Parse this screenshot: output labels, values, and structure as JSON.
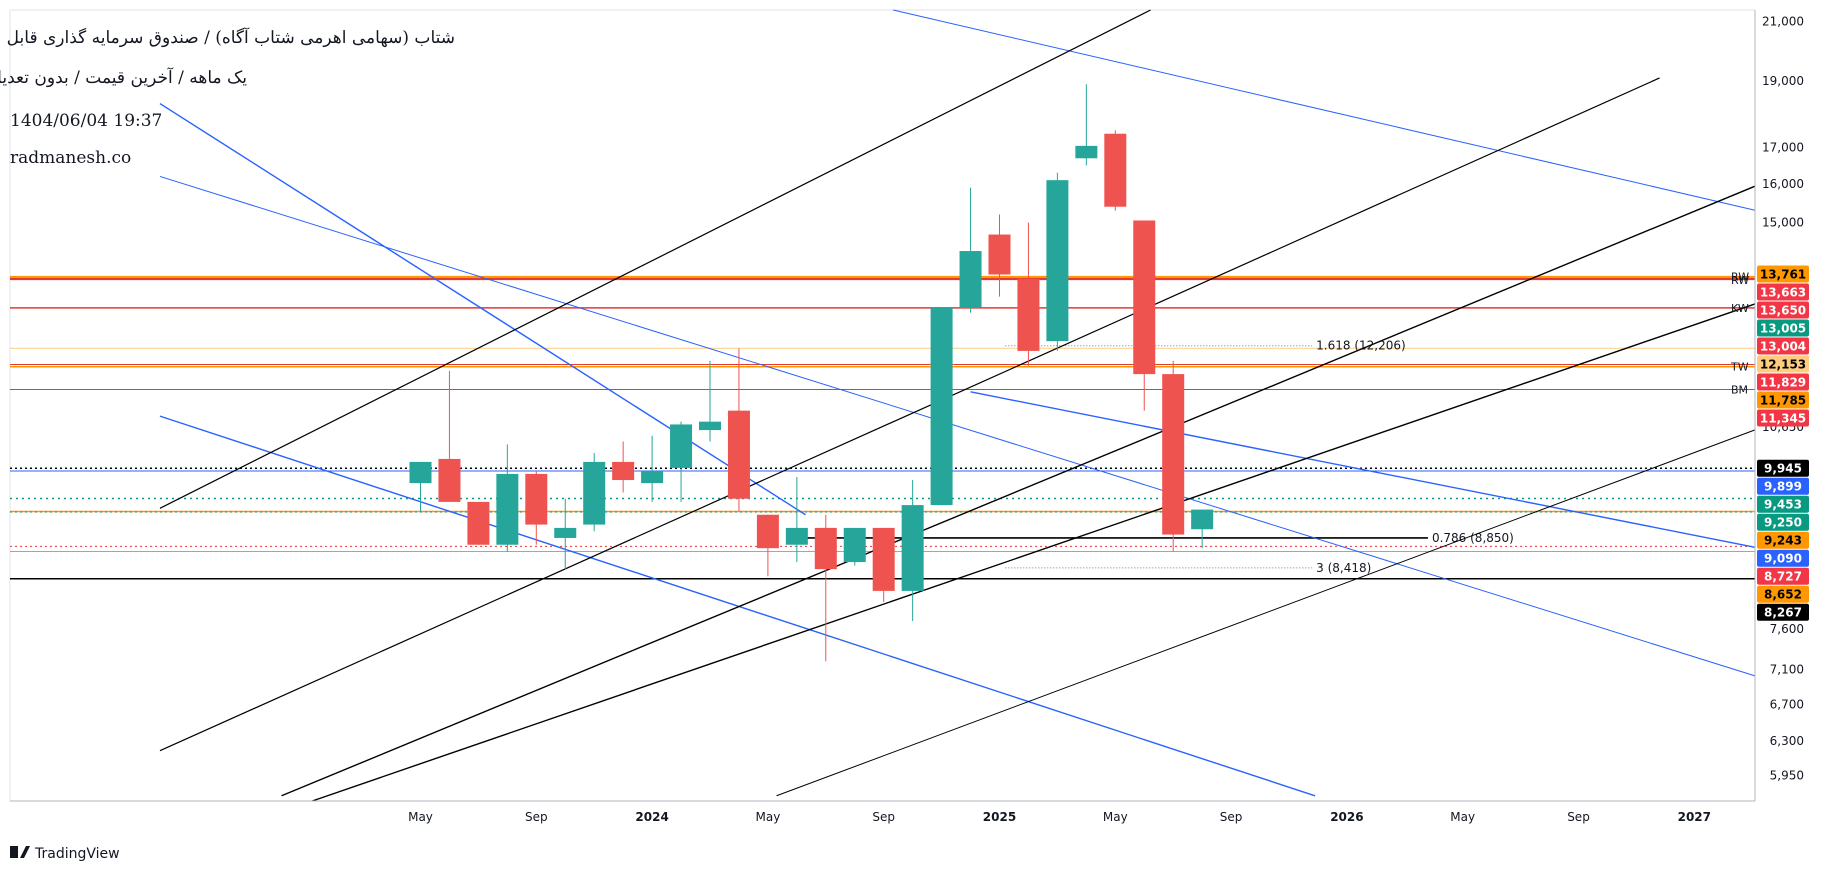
{
  "header": {
    "title_line1": "شتاب (سهامی اهرمی شتاب آگاه) / صندوق سرمایه گذاری قابل معامله",
    "title_line2": "یک ماهه / آخرین قیمت / بدون تعدیل",
    "timestamp": "1404/06/04 19:37",
    "site": "radmanesh.co"
  },
  "watermark": "TradingView",
  "colors": {
    "up": "#26a69a",
    "down": "#ef5350",
    "blue": "#2962ff",
    "black": "#000000",
    "orange": "#ff9800",
    "red": "#e53935"
  },
  "chart_data": {
    "type": "candlestick",
    "timeframe": "1M",
    "y_scale": "log",
    "ylim": [
      5700,
      21400
    ],
    "y_ticks": [
      {
        "v": 21000,
        "t": "21,000"
      },
      {
        "v": 19000,
        "t": "19,000"
      },
      {
        "v": 17000,
        "t": "17,000"
      },
      {
        "v": 16000,
        "t": "16,000"
      },
      {
        "v": 15000,
        "t": "15,000"
      },
      {
        "v": 10650,
        "t": "10,650"
      },
      {
        "v": 7600,
        "t": "7,600"
      },
      {
        "v": 7100,
        "t": "7,100"
      },
      {
        "v": 6700,
        "t": "6,700"
      },
      {
        "v": 6300,
        "t": "6,300"
      },
      {
        "v": 5950,
        "t": "5,950"
      }
    ],
    "x_ticks": [
      {
        "i": 0,
        "t": "May",
        "bold": false
      },
      {
        "i": 4,
        "t": "Sep",
        "bold": false
      },
      {
        "i": 8,
        "t": "2024",
        "bold": true
      },
      {
        "i": 12,
        "t": "May",
        "bold": false
      },
      {
        "i": 16,
        "t": "Sep",
        "bold": false
      },
      {
        "i": 20,
        "t": "2025",
        "bold": true
      },
      {
        "i": 24,
        "t": "May",
        "bold": false
      },
      {
        "i": 28,
        "t": "Sep",
        "bold": false
      },
      {
        "i": 32,
        "t": "2026",
        "bold": true
      },
      {
        "i": 36,
        "t": "May",
        "bold": false
      },
      {
        "i": 40,
        "t": "Sep",
        "bold": false
      },
      {
        "i": 44,
        "t": "2027",
        "bold": true
      }
    ],
    "candles": [
      {
        "i": 0,
        "o": 9700,
        "h": 10000,
        "l": 9250,
        "c": 10050
      },
      {
        "i": 1,
        "o": 10100,
        "h": 11700,
        "l": 9500,
        "c": 9400
      },
      {
        "i": 2,
        "o": 9400,
        "h": 9400,
        "l": 8750,
        "c": 8750
      },
      {
        "i": 3,
        "o": 8750,
        "h": 10350,
        "l": 8650,
        "c": 9850
      },
      {
        "i": 4,
        "o": 9850,
        "h": 9900,
        "l": 8750,
        "c": 9050
      },
      {
        "i": 5,
        "o": 8850,
        "h": 9450,
        "l": 8400,
        "c": 9000
      },
      {
        "i": 6,
        "o": 9050,
        "h": 10200,
        "l": 8950,
        "c": 10050
      },
      {
        "i": 7,
        "o": 10050,
        "h": 10400,
        "l": 9550,
        "c": 9750
      },
      {
        "i": 8,
        "o": 9700,
        "h": 10500,
        "l": 9400,
        "c": 9900
      },
      {
        "i": 9,
        "o": 9950,
        "h": 10750,
        "l": 9400,
        "c": 10700
      },
      {
        "i": 10,
        "o": 10600,
        "h": 11900,
        "l": 10400,
        "c": 10750
      },
      {
        "i": 11,
        "o": 10950,
        "h": 12150,
        "l": 9250,
        "c": 9450
      },
      {
        "i": 12,
        "o": 9200,
        "h": 9200,
        "l": 8300,
        "c": 8700
      },
      {
        "i": 13,
        "o": 8750,
        "h": 9800,
        "l": 8500,
        "c": 9000
      },
      {
        "i": 14,
        "o": 9000,
        "h": 9200,
        "l": 7200,
        "c": 8400
      },
      {
        "i": 15,
        "o": 8500,
        "h": 9000,
        "l": 8450,
        "c": 9000
      },
      {
        "i": 16,
        "o": 9000,
        "h": 9000,
        "l": 7950,
        "c": 8100
      },
      {
        "i": 17,
        "o": 8100,
        "h": 9750,
        "l": 7700,
        "c": 9350
      },
      {
        "i": 18,
        "o": 9350,
        "h": 13020,
        "l": 9350,
        "c": 13020
      },
      {
        "i": 19,
        "o": 13020,
        "h": 15900,
        "l": 12900,
        "c": 14300
      },
      {
        "i": 20,
        "o": 14700,
        "h": 15200,
        "l": 13250,
        "c": 13750
      },
      {
        "i": 21,
        "o": 13650,
        "h": 15000,
        "l": 11800,
        "c": 12100
      },
      {
        "i": 22,
        "o": 12300,
        "h": 16300,
        "l": 12100,
        "c": 16100
      },
      {
        "i": 23,
        "o": 16700,
        "h": 18900,
        "l": 16500,
        "c": 17050
      },
      {
        "i": 24,
        "o": 17400,
        "h": 17500,
        "l": 15300,
        "c": 15400
      },
      {
        "i": 25,
        "o": 15050,
        "h": 15050,
        "l": 10950,
        "c": 11640
      },
      {
        "i": 26,
        "o": 11640,
        "h": 11900,
        "l": 8650,
        "c": 8900
      },
      {
        "i": 27,
        "o": 8980,
        "h": 9250,
        "l": 8700,
        "c": 9280
      }
    ],
    "price_tags": [
      {
        "v": 13761,
        "t": "13,761",
        "bg": "#ff9800",
        "fg": "#000000"
      },
      {
        "v": 13663,
        "t": "13,663",
        "bg": "#f23645",
        "fg": "#ffffff"
      },
      {
        "v": 13650,
        "t": "13,650",
        "bg": "#f23645",
        "fg": "#ffffff"
      },
      {
        "v": 13005,
        "t": "13,005",
        "bg": "#089981",
        "fg": "#ffffff"
      },
      {
        "v": 13004,
        "t": "13,004",
        "bg": "#f23645",
        "fg": "#ffffff"
      },
      {
        "v": 12153,
        "t": "12,153",
        "bg": "#ffcc80",
        "fg": "#000000"
      },
      {
        "v": 11829,
        "t": "11,829",
        "bg": "#f23645",
        "fg": "#ffffff"
      },
      {
        "v": 11785,
        "t": "11,785",
        "bg": "#ff9800",
        "fg": "#000000"
      },
      {
        "v": 11345,
        "t": "11,345",
        "bg": "#f23645",
        "fg": "#ffffff"
      },
      {
        "v": 9945,
        "t": "9,945",
        "bg": "#000000",
        "fg": "#ffffff"
      },
      {
        "v": 9899,
        "t": "9,899",
        "bg": "#2962ff",
        "fg": "#ffffff"
      },
      {
        "v": 9453,
        "t": "9,453",
        "bg": "#089981",
        "fg": "#ffffff"
      },
      {
        "v": 9250,
        "t": "9,250",
        "bg": "#089981",
        "fg": "#ffffff"
      },
      {
        "v": 9243,
        "t": "9,243",
        "bg": "#ff9800",
        "fg": "#000000"
      },
      {
        "v": 9090,
        "t": "9,090",
        "bg": "#2962ff",
        "fg": "#ffffff"
      },
      {
        "v": 8727,
        "t": "8,727",
        "bg": "#f23645",
        "fg": "#ffffff"
      },
      {
        "v": 8652,
        "t": "8,652",
        "bg": "#ff9800",
        "fg": "#000000"
      },
      {
        "v": 8267,
        "t": "8,267",
        "bg": "#000000",
        "fg": "#ffffff"
      }
    ],
    "horizontal_lines": [
      {
        "v": 13700,
        "color": "#ff9800",
        "width": 1.5,
        "dash": ""
      },
      {
        "v": 13650,
        "color": "#e53935",
        "width": 2.5,
        "dash": ""
      },
      {
        "v": 13004,
        "color": "#e53935",
        "width": 1.5,
        "dash": ""
      },
      {
        "v": 12153,
        "color": "#ffcc80",
        "width": 1,
        "dash": ""
      },
      {
        "v": 11829,
        "color": "#e53935",
        "width": 1,
        "dash": ""
      },
      {
        "v": 11785,
        "color": "#ff9800",
        "width": 1.5,
        "dash": ""
      },
      {
        "v": 11345,
        "color": "#e53935",
        "width": 1,
        "dash": ""
      },
      {
        "v": 9945,
        "color": "#000000",
        "width": 1.5,
        "dash": "2,3"
      },
      {
        "v": 9899,
        "color": "#2962ff",
        "width": 1,
        "dash": ""
      },
      {
        "v": 9453,
        "color": "#089981",
        "width": 1.5,
        "dash": "2,4"
      },
      {
        "v": 9250,
        "color": "#ff9800",
        "width": 1.5,
        "dash": ""
      },
      {
        "v": 9243,
        "color": "#089981",
        "width": 1,
        "dash": "2,3"
      },
      {
        "v": 8727,
        "color": "#e53935",
        "width": 1,
        "dash": "2,3"
      },
      {
        "v": 8652,
        "color": "#ff9800",
        "width": 1,
        "dash": ""
      },
      {
        "v": 8267,
        "color": "#000000",
        "width": 1.5,
        "dash": ""
      }
    ],
    "line_labels": [
      {
        "v": 13700,
        "t": "RW"
      },
      {
        "v": 13620,
        "t": "RW"
      },
      {
        "v": 13004,
        "t": "KW"
      },
      {
        "v": 11785,
        "t": "TW"
      },
      {
        "v": 11345,
        "t": "BM"
      }
    ],
    "fib_levels": [
      {
        "v": 12206,
        "t": "1.618 (12,206)",
        "i_start": 20.2,
        "i_end": 30.8
      },
      {
        "v": 8850,
        "t": "0.786 (8,850)",
        "i_start": 13.0,
        "i_end": 34.8
      },
      {
        "v": 8418,
        "t": "3 (8,418)",
        "i_start": 20.2,
        "i_end": 30.8
      }
    ],
    "trend_lines": [
      {
        "i1": -9.0,
        "v1": 18300,
        "i2": 13.3,
        "v2": 9200,
        "color": "#2962ff",
        "width": 1.4
      },
      {
        "i1": 19.0,
        "v1": 11300,
        "i2": 56.3,
        "v2": 7900,
        "color": "#2962ff",
        "width": 1.4
      },
      {
        "i1": -9.0,
        "v1": 16200,
        "i2": 56.3,
        "v2": 6020,
        "color": "#2962ff",
        "width": 1.0
      },
      {
        "i1": -9.0,
        "v1": 10850,
        "i2": 30.9,
        "v2": 5750,
        "color": "#2962ff",
        "width": 1.4
      },
      {
        "i1": 15.5,
        "v1": 21600,
        "i2": 56.3,
        "v2": 13650,
        "color": "#2962ff",
        "width": 1.0
      },
      {
        "i1": -9.0,
        "v1": 9300,
        "i2": 25.6,
        "v2": 21600,
        "color": "#000000",
        "width": 1.2
      },
      {
        "i1": -9.0,
        "v1": 6200,
        "i2": 42.8,
        "v2": 19100,
        "color": "#000000",
        "width": 1.2
      },
      {
        "i1": -4.8,
        "v1": 5750,
        "i2": 46.6,
        "v2": 16100,
        "color": "#000000",
        "width": 1.4
      },
      {
        "i1": -4.8,
        "v1": 5600,
        "i2": 46.6,
        "v2": 13200,
        "color": "#000000",
        "width": 1.4
      },
      {
        "i1": 12.3,
        "v1": 5750,
        "i2": 46.6,
        "v2": 10700,
        "color": "#000000",
        "width": 1.0
      }
    ]
  }
}
